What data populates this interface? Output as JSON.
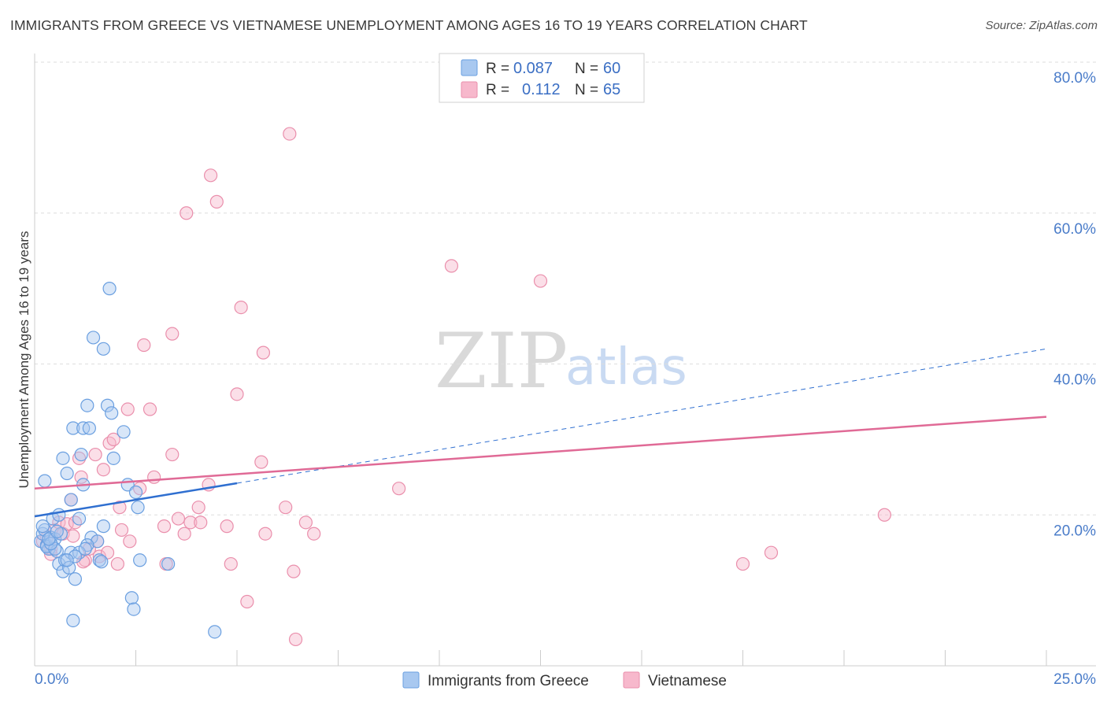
{
  "title": "IMMIGRANTS FROM GREECE VS VIETNAMESE UNEMPLOYMENT AMONG AGES 16 TO 19 YEARS CORRELATION CHART",
  "source": "Source: ZipAtlas.com",
  "watermark": {
    "zip": "ZIP",
    "atlas": "atlas"
  },
  "colors": {
    "blue_fill": "#a8c8f0",
    "blue_stroke": "#6a9fe0",
    "blue_line": "#2f6fd0",
    "pink_fill": "#f7b8cc",
    "pink_stroke": "#ea8fac",
    "pink_line": "#e06a96",
    "tick_text": "#4a7cc9",
    "grid": "#dddddd"
  },
  "legend": {
    "rows": [
      {
        "r_label": "R =",
        "r_value": "0.087",
        "n_label": "N =",
        "n_value": "60"
      },
      {
        "r_label": "R =",
        "r_value": "0.112",
        "n_label": "N =",
        "n_value": "65"
      }
    ]
  },
  "chart_data": {
    "type": "scatter",
    "title": "IMMIGRANTS FROM GREECE VS VIETNAMESE UNEMPLOYMENT AMONG AGES 16 TO 19 YEARS CORRELATION CHART",
    "xlabel": "",
    "ylabel": "Unemployment Among Ages 16 to 19 years",
    "xlim": [
      0,
      25
    ],
    "ylim": [
      0,
      80
    ],
    "x_tick_labels": [
      "0.0%",
      "25.0%"
    ],
    "y_ticks": [
      20,
      40,
      60,
      80
    ],
    "y_tick_labels": [
      "20.0%",
      "40.0%",
      "60.0%",
      "80.0%"
    ],
    "grid": true,
    "legend_position": "top-center",
    "series": [
      {
        "name": "Immigrants from Greece",
        "color": "#6a9fe0",
        "r": 0.087,
        "n": 60,
        "trend": {
          "x0": 0,
          "y0": 19.8,
          "x1": 5,
          "y1": 24.2,
          "dashed_to_x": 25,
          "dashed_to_y": 42.0
        },
        "points": [
          [
            0.15,
            16.5
          ],
          [
            0.2,
            17.5
          ],
          [
            0.25,
            18.0
          ],
          [
            0.3,
            16.0
          ],
          [
            0.35,
            15.5
          ],
          [
            0.4,
            17.0
          ],
          [
            0.3,
            15.8
          ],
          [
            0.45,
            19.5
          ],
          [
            0.5,
            16.8
          ],
          [
            0.55,
            15.2
          ],
          [
            0.6,
            20.0
          ],
          [
            0.65,
            17.5
          ],
          [
            0.25,
            24.5
          ],
          [
            0.7,
            27.5
          ],
          [
            0.8,
            25.5
          ],
          [
            0.9,
            22.0
          ],
          [
            0.95,
            31.5
          ],
          [
            0.6,
            13.5
          ],
          [
            0.7,
            12.5
          ],
          [
            0.75,
            14.0
          ],
          [
            0.85,
            13.0
          ],
          [
            0.9,
            15.0
          ],
          [
            1.0,
            11.5
          ],
          [
            0.95,
            6.0
          ],
          [
            1.1,
            19.5
          ],
          [
            1.15,
            28.0
          ],
          [
            1.2,
            24.0
          ],
          [
            1.2,
            31.5
          ],
          [
            1.35,
            31.5
          ],
          [
            1.3,
            34.5
          ],
          [
            1.45,
            43.5
          ],
          [
            1.7,
            42.0
          ],
          [
            1.8,
            34.5
          ],
          [
            1.9,
            33.5
          ],
          [
            1.95,
            27.5
          ],
          [
            1.85,
            50.0
          ],
          [
            2.2,
            31.0
          ],
          [
            2.3,
            24.0
          ],
          [
            2.5,
            23.0
          ],
          [
            2.55,
            21.0
          ],
          [
            1.7,
            18.5
          ],
          [
            1.4,
            17.0
          ],
          [
            1.55,
            16.5
          ],
          [
            1.3,
            16.0
          ],
          [
            1.6,
            14.0
          ],
          [
            1.65,
            13.8
          ],
          [
            1.1,
            15.0
          ],
          [
            1.0,
            14.5
          ],
          [
            0.5,
            15.5
          ],
          [
            0.4,
            16.2
          ],
          [
            2.4,
            9.0
          ],
          [
            2.45,
            7.5
          ],
          [
            2.6,
            14.0
          ],
          [
            3.3,
            13.5
          ],
          [
            4.45,
            4.5
          ],
          [
            0.2,
            18.5
          ],
          [
            0.35,
            16.8
          ],
          [
            0.8,
            14.0
          ],
          [
            1.25,
            15.5
          ],
          [
            0.55,
            17.8
          ]
        ]
      },
      {
        "name": "Vietnamese",
        "color": "#ea8fac",
        "r": 0.112,
        "n": 65,
        "trend": {
          "x0": 0,
          "y0": 23.5,
          "x1": 25,
          "y1": 33.0
        },
        "points": [
          [
            0.2,
            16.5
          ],
          [
            0.3,
            17.0
          ],
          [
            0.4,
            15.5
          ],
          [
            0.5,
            18.0
          ],
          [
            0.6,
            19.0
          ],
          [
            0.7,
            17.5
          ],
          [
            0.8,
            18.8
          ],
          [
            0.9,
            22.0
          ],
          [
            1.0,
            19.0
          ],
          [
            1.1,
            27.5
          ],
          [
            1.15,
            25.0
          ],
          [
            1.25,
            14.0
          ],
          [
            1.35,
            15.5
          ],
          [
            1.5,
            28.0
          ],
          [
            1.55,
            16.5
          ],
          [
            1.6,
            14.5
          ],
          [
            1.7,
            26.0
          ],
          [
            1.8,
            15.0
          ],
          [
            1.85,
            29.5
          ],
          [
            1.95,
            30.0
          ],
          [
            2.1,
            21.0
          ],
          [
            2.15,
            18.0
          ],
          [
            2.3,
            34.0
          ],
          [
            2.35,
            16.5
          ],
          [
            2.6,
            23.5
          ],
          [
            2.7,
            42.5
          ],
          [
            2.85,
            34.0
          ],
          [
            2.95,
            25.0
          ],
          [
            3.2,
            18.5
          ],
          [
            3.25,
            13.5
          ],
          [
            3.4,
            28.0
          ],
          [
            3.4,
            44.0
          ],
          [
            3.55,
            19.5
          ],
          [
            3.7,
            17.5
          ],
          [
            3.75,
            60.0
          ],
          [
            3.85,
            19.0
          ],
          [
            4.05,
            21.0
          ],
          [
            4.1,
            19.0
          ],
          [
            4.3,
            24.0
          ],
          [
            4.35,
            65.0
          ],
          [
            4.5,
            61.5
          ],
          [
            4.75,
            18.5
          ],
          [
            4.85,
            13.5
          ],
          [
            5.0,
            36.0
          ],
          [
            5.1,
            47.5
          ],
          [
            5.25,
            8.5
          ],
          [
            5.6,
            27.0
          ],
          [
            5.7,
            17.5
          ],
          [
            5.65,
            41.5
          ],
          [
            6.2,
            21.0
          ],
          [
            6.3,
            70.5
          ],
          [
            6.4,
            12.5
          ],
          [
            6.45,
            3.5
          ],
          [
            6.7,
            19.0
          ],
          [
            6.9,
            17.5
          ],
          [
            9.0,
            23.5
          ],
          [
            10.3,
            53.0
          ],
          [
            12.5,
            51.0
          ],
          [
            17.5,
            13.5
          ],
          [
            18.2,
            15.0
          ],
          [
            21.0,
            20.0
          ],
          [
            0.4,
            14.8
          ],
          [
            1.2,
            13.8
          ],
          [
            2.05,
            13.5
          ],
          [
            0.95,
            17.2
          ]
        ]
      }
    ]
  }
}
